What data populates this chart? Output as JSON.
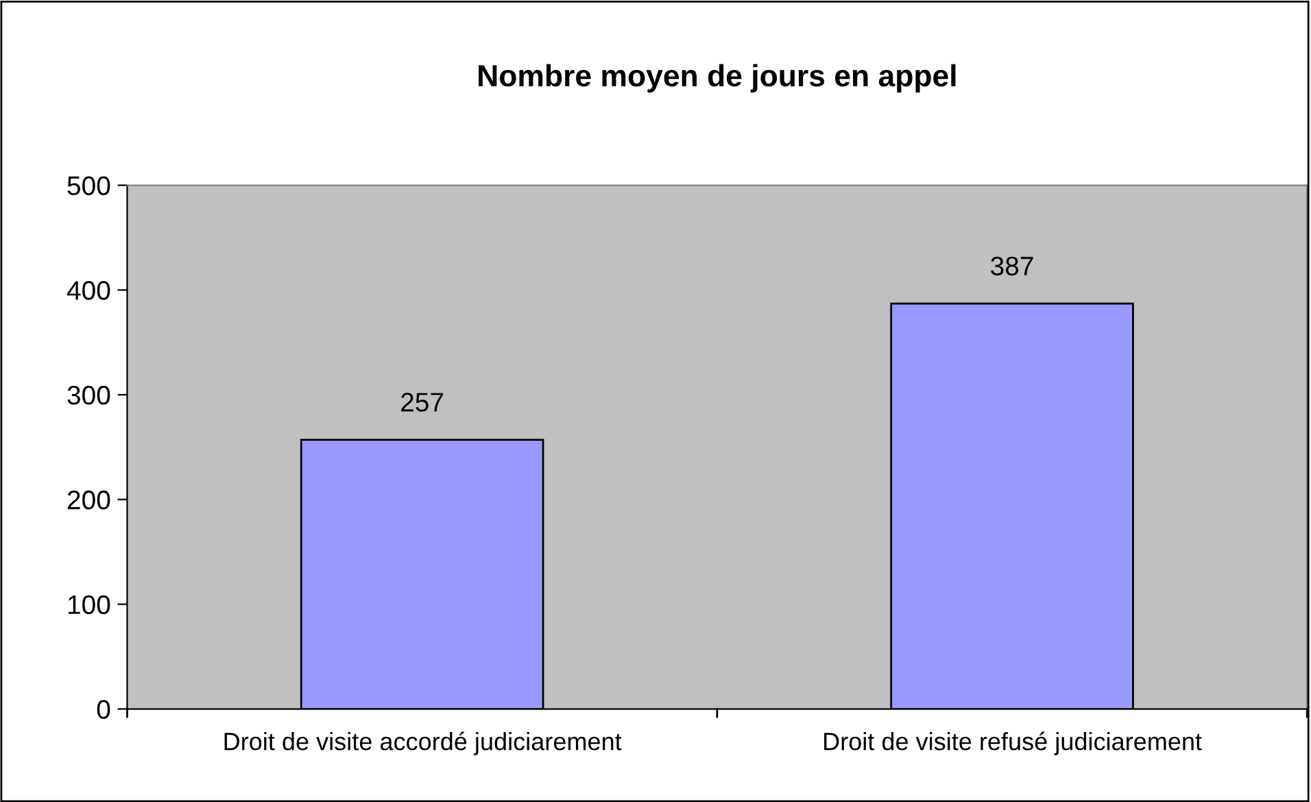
{
  "chart_data": {
    "type": "bar",
    "title": "Nombre moyen de jours en appel",
    "categories": [
      "Droit de visite accordé judiciarement",
      "Droit de visite refusé judiciarement"
    ],
    "values": [
      257,
      387
    ],
    "color": "#9999ff",
    "ylim": [
      0,
      500
    ],
    "yticks": [
      0,
      100,
      200,
      300,
      400,
      500
    ],
    "grid": false,
    "data_labels": true
  }
}
